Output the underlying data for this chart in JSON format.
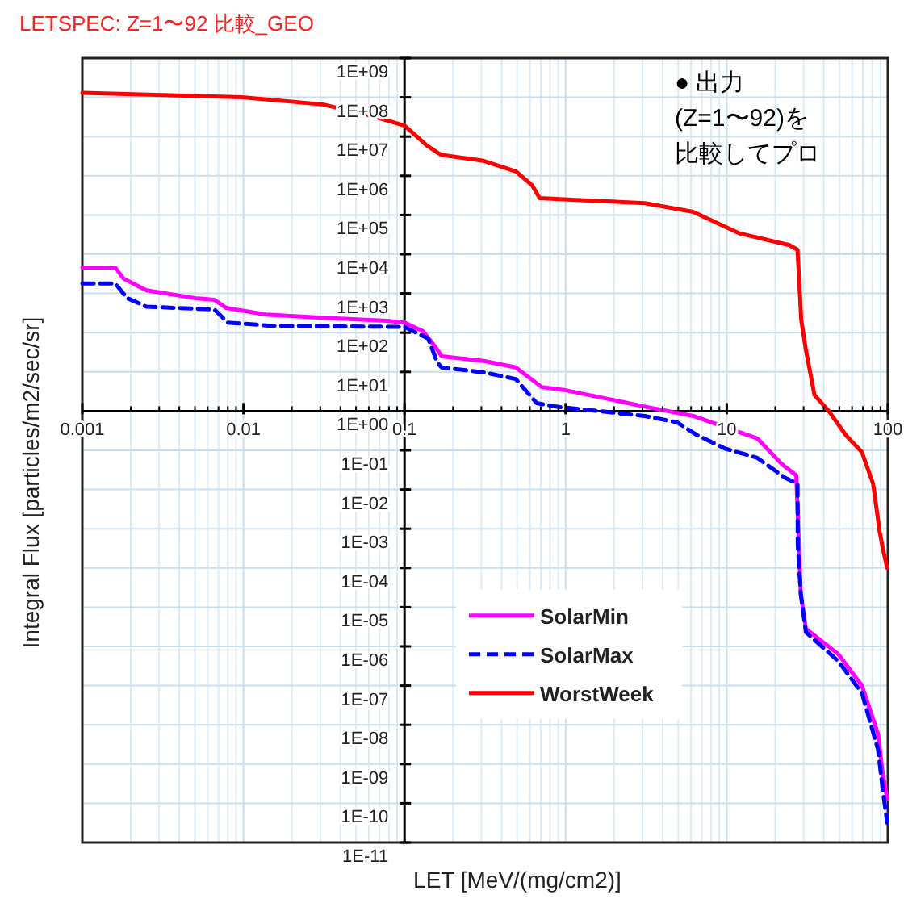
{
  "chart_data": {
    "type": "line",
    "title": "LETSPEC: Z=1〜92 比較_GEO",
    "annotations": [
      "● 出力",
      "(Z=1〜92)を",
      "比較してプロ"
    ],
    "xlabel": "LET [MeV/(mg/cm2)]",
    "ylabel": "Integral Flux [particles/m2/sec/sr]",
    "log": "xy",
    "xlim": [
      0.001,
      100
    ],
    "ylim": [
      1e-11,
      1000000000.0
    ],
    "xticks": [
      0.001,
      0.01,
      0.1,
      1,
      10,
      100
    ],
    "yticks": [
      {
        "value": 1000000000.0,
        "label": "1E+09"
      },
      {
        "value": 100000000.0,
        "label": "1E+08"
      },
      {
        "value": 10000000.0,
        "label": "1E+07"
      },
      {
        "value": 1000000.0,
        "label": "1E+06"
      },
      {
        "value": 100000.0,
        "label": "1E+05"
      },
      {
        "value": 10000.0,
        "label": "1E+04"
      },
      {
        "value": 1000.0,
        "label": "1E+03"
      },
      {
        "value": 100.0,
        "label": "1E+02"
      },
      {
        "value": 10.0,
        "label": "1E+01"
      },
      {
        "value": 1,
        "label": "1E+00"
      },
      {
        "value": 0.1,
        "label": "1E-01"
      },
      {
        "value": 0.01,
        "label": "1E-02"
      },
      {
        "value": 0.001,
        "label": "1E-03"
      },
      {
        "value": 0.0001,
        "label": "1E-04"
      },
      {
        "value": 1e-05,
        "label": "1E-05"
      },
      {
        "value": 1e-06,
        "label": "1E-06"
      },
      {
        "value": 1e-07,
        "label": "1E-07"
      },
      {
        "value": 1e-08,
        "label": "1E-08"
      },
      {
        "value": 1e-09,
        "label": "1E-09"
      },
      {
        "value": 1e-10,
        "label": "1E-10"
      },
      {
        "value": 1e-11,
        "label": "1E-11"
      }
    ],
    "grid": true,
    "legend": "bottom",
    "series": [
      {
        "name": "SolarMin",
        "color": "#ff00ff",
        "line_style": "solid",
        "x": [
          0.001,
          0.0016,
          0.0018,
          0.0025,
          0.005,
          0.0066,
          0.0078,
          0.0138,
          0.031,
          0.078,
          0.1,
          0.13,
          0.155,
          0.17,
          0.31,
          0.49,
          0.71,
          1,
          2,
          3.1,
          6.2,
          9.8,
          15.5,
          22,
          27,
          27.5,
          28,
          28.8,
          31,
          49,
          69,
          87,
          93,
          99
        ],
        "values": [
          4600,
          4600,
          2400,
          1200,
          760,
          690,
          430,
          290,
          240,
          200,
          180,
          110,
          44,
          25,
          19,
          13,
          4.1,
          3.4,
          1.9,
          1.3,
          0.75,
          0.39,
          0.2,
          0.044,
          0.023,
          0.0034,
          0.00046,
          2.2e-05,
          2.8e-06,
          6.5e-07,
          1e-07,
          5.8e-09,
          5.6e-10,
          1.3e-10
        ]
      },
      {
        "name": "SolarMax",
        "color": "#0000ff",
        "line_style": "dashed",
        "x": [
          0.001,
          0.0016,
          0.0019,
          0.0025,
          0.0066,
          0.008,
          0.015,
          0.1,
          0.14,
          0.16,
          0.17,
          0.31,
          0.49,
          0.66,
          0.87,
          2,
          3.1,
          4.9,
          6.6,
          9.8,
          15.5,
          23,
          27.5,
          27.6,
          28.8,
          31,
          49,
          69,
          87,
          93,
          99
        ],
        "values": [
          1800,
          1800,
          760,
          460,
          390,
          180,
          150,
          140,
          71,
          17,
          13,
          9.7,
          6.6,
          1.6,
          1.3,
          0.91,
          0.75,
          0.52,
          0.24,
          0.11,
          0.064,
          0.02,
          0.014,
          0.00039,
          2.2e-05,
          2.3e-06,
          4.3e-07,
          6.5e-08,
          2.3e-09,
          2.2e-10,
          3.2e-11
        ]
      },
      {
        "name": "WorstWeek",
        "color": "#ff0000",
        "line_style": "solid",
        "x": [
          0.001,
          0.0098,
          0.031,
          0.062,
          0.1,
          0.137,
          0.16,
          0.17,
          0.31,
          0.49,
          0.62,
          0.69,
          1.23,
          3.1,
          6.2,
          12,
          24.5,
          27.5,
          29,
          31,
          35,
          43,
          55,
          69,
          81,
          89,
          93,
          99
        ],
        "values": [
          130000000.0,
          100000000.0,
          66000000.0,
          34000000.0,
          19000000.0,
          6000000.0,
          3900000.0,
          3400000.0,
          2400000.0,
          1300000.0,
          570000.0,
          270000.0,
          240000.0,
          200000.0,
          120000.0,
          34000.0,
          17000.0,
          13000.0,
          210,
          36,
          2.6,
          1,
          0.24,
          0.09,
          0.014,
          0.00083,
          0.00032,
          0.0001
        ]
      }
    ]
  }
}
